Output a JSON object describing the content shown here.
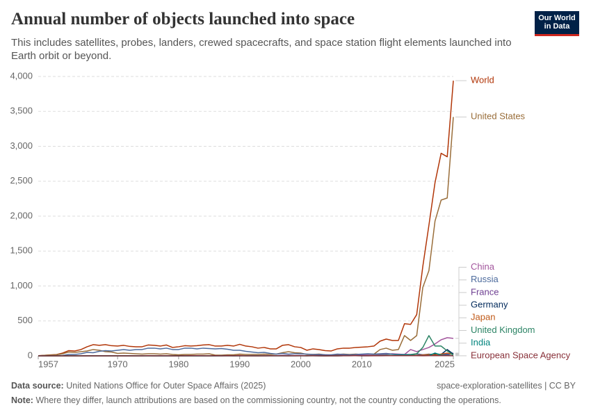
{
  "logo": {
    "line1": "Our World",
    "line2": "in Data"
  },
  "chart_data": {
    "type": "line",
    "title": "Annual number of objects launched into space",
    "subtitle": "This includes satellites, probes, landers, crewed spacecrafts, and space station flight elements launched into Earth orbit or beyond.",
    "source_label": "Data source:",
    "source": "United Nations Office for Outer Space Affairs (2025)",
    "slug": "space-exploration-satellites | CC BY",
    "note_label": "Note:",
    "note": "Where they differ, launch attributions are based on the commissioning country, not the country conducting the operations.",
    "grid": true,
    "xlim": [
      1957,
      2025
    ],
    "xticks": [
      1957,
      1970,
      1980,
      1990,
      2000,
      2010,
      2025
    ],
    "ylim": [
      0,
      4000
    ],
    "yticks": [
      0,
      500,
      {
        "value": 1000,
        "label": "1,000"
      },
      {
        "value": 1500,
        "label": "1,500"
      },
      {
        "value": 2000,
        "label": "2,000"
      },
      {
        "value": 2500,
        "label": "2,500"
      },
      {
        "value": 3000,
        "label": "3,000"
      },
      {
        "value": 3500,
        "label": "3,500"
      },
      {
        "value": 4000,
        "label": "4,000"
      }
    ],
    "x": [
      1957,
      1958,
      1959,
      1960,
      1961,
      1962,
      1963,
      1964,
      1965,
      1966,
      1967,
      1968,
      1969,
      1970,
      1971,
      1972,
      1973,
      1974,
      1975,
      1976,
      1977,
      1978,
      1979,
      1980,
      1981,
      1982,
      1983,
      1984,
      1985,
      1986,
      1987,
      1988,
      1989,
      1990,
      1991,
      1992,
      1993,
      1994,
      1995,
      1996,
      1997,
      1998,
      1999,
      2000,
      2001,
      2002,
      2003,
      2004,
      2005,
      2006,
      2007,
      2008,
      2009,
      2010,
      2011,
      2012,
      2013,
      2014,
      2015,
      2016,
      2017,
      2018,
      2019,
      2020,
      2021,
      2022,
      2023,
      2024,
      2025
    ],
    "series": [
      {
        "name": "World",
        "color": "#b13507",
        "values": [
          2,
          8,
          14,
          19,
          40,
          75,
          70,
          90,
          130,
          160,
          150,
          160,
          145,
          140,
          150,
          135,
          130,
          130,
          155,
          150,
          140,
          155,
          120,
          130,
          145,
          140,
          145,
          155,
          160,
          140,
          140,
          150,
          140,
          165,
          140,
          130,
          110,
          120,
          100,
          100,
          150,
          160,
          130,
          120,
          80,
          100,
          90,
          75,
          70,
          100,
          110,
          110,
          120,
          125,
          130,
          140,
          210,
          240,
          220,
          220,
          460,
          450,
          590,
          1280,
          1870,
          2480,
          2900,
          2850,
          3940
        ]
      },
      {
        "name": "United States",
        "color": "#996d39",
        "values": [
          0,
          7,
          11,
          16,
          30,
          55,
          50,
          60,
          70,
          90,
          80,
          60,
          55,
          35,
          40,
          35,
          30,
          25,
          30,
          30,
          25,
          30,
          20,
          15,
          20,
          20,
          25,
          25,
          30,
          10,
          10,
          15,
          15,
          25,
          20,
          20,
          20,
          25,
          20,
          25,
          45,
          60,
          45,
          40,
          20,
          20,
          25,
          15,
          10,
          20,
          25,
          20,
          25,
          20,
          20,
          25,
          90,
          110,
          80,
          90,
          290,
          220,
          290,
          980,
          1220,
          1930,
          2230,
          2260,
          3420
        ]
      },
      {
        "name": "China",
        "color": "#a2559c",
        "values": [
          0,
          0,
          0,
          0,
          0,
          0,
          0,
          0,
          0,
          0,
          0,
          0,
          0,
          1,
          1,
          0,
          0,
          0,
          3,
          2,
          0,
          1,
          0,
          0,
          3,
          1,
          0,
          3,
          1,
          2,
          2,
          4,
          0,
          5,
          1,
          4,
          2,
          5,
          2,
          3,
          6,
          6,
          4,
          5,
          1,
          5,
          7,
          10,
          5,
          7,
          10,
          12,
          7,
          18,
          21,
          22,
          18,
          23,
          30,
          25,
          20,
          90,
          60,
          90,
          120,
          170,
          230,
          260,
          250
        ]
      },
      {
        "name": "Russia",
        "color": "#4c6a9c",
        "values": [
          2,
          1,
          3,
          3,
          6,
          20,
          20,
          30,
          50,
          45,
          65,
          75,
          70,
          80,
          90,
          80,
          90,
          90,
          110,
          110,
          100,
          110,
          90,
          90,
          110,
          110,
          100,
          110,
          105,
          100,
          105,
          95,
          80,
          80,
          65,
          55,
          45,
          50,
          35,
          25,
          35,
          25,
          30,
          30,
          25,
          20,
          20,
          15,
          15,
          25,
          20,
          15,
          20,
          25,
          30,
          25,
          30,
          35,
          25,
          20,
          20,
          20,
          30,
          15,
          25,
          10,
          25,
          15,
          40
        ]
      },
      {
        "name": "France",
        "color": "#6d3e91",
        "values": [
          0,
          0,
          0,
          0,
          0,
          0,
          0,
          0,
          1,
          1,
          2,
          0,
          0,
          1,
          2,
          0,
          0,
          2,
          3,
          0,
          2,
          1,
          0,
          1,
          1,
          2,
          1,
          2,
          2,
          2,
          1,
          3,
          2,
          3,
          2,
          2,
          2,
          3,
          3,
          3,
          5,
          4,
          3,
          4,
          3,
          4,
          3,
          6,
          4,
          5,
          4,
          5,
          4,
          5,
          4,
          4,
          3,
          5,
          5,
          6,
          6,
          8,
          10,
          15,
          18,
          20,
          22,
          25,
          30
        ]
      },
      {
        "name": "Germany",
        "color": "#00295b",
        "values": [
          0,
          0,
          0,
          0,
          0,
          0,
          0,
          0,
          0,
          0,
          0,
          0,
          1,
          1,
          1,
          0,
          0,
          2,
          1,
          0,
          0,
          1,
          0,
          0,
          0,
          0,
          1,
          0,
          0,
          0,
          1,
          1,
          1,
          2,
          1,
          0,
          0,
          1,
          1,
          1,
          2,
          1,
          1,
          3,
          2,
          2,
          0,
          0,
          1,
          1,
          3,
          3,
          2,
          1,
          1,
          3,
          5,
          4,
          5,
          3,
          5,
          7,
          6,
          10,
          15,
          30,
          20,
          90,
          25
        ]
      },
      {
        "name": "Japan",
        "color": "#c05917",
        "values": [
          0,
          0,
          0,
          0,
          0,
          0,
          0,
          0,
          0,
          0,
          0,
          0,
          0,
          1,
          1,
          1,
          0,
          1,
          2,
          1,
          2,
          3,
          2,
          2,
          3,
          1,
          3,
          3,
          2,
          4,
          3,
          3,
          2,
          5,
          3,
          3,
          2,
          4,
          2,
          2,
          3,
          3,
          2,
          2,
          3,
          4,
          3,
          0,
          3,
          5,
          3,
          3,
          4,
          3,
          3,
          5,
          3,
          5,
          4,
          4,
          7,
          10,
          9,
          12,
          20,
          15,
          25,
          40,
          20
        ]
      },
      {
        "name": "United Kingdom",
        "color": "#2c8465",
        "values": [
          0,
          0,
          0,
          0,
          0,
          1,
          0,
          0,
          0,
          0,
          1,
          0,
          1,
          0,
          2,
          0,
          0,
          1,
          0,
          0,
          0,
          1,
          0,
          0,
          1,
          0,
          0,
          0,
          0,
          1,
          1,
          1,
          1,
          1,
          1,
          1,
          0,
          0,
          1,
          1,
          2,
          1,
          2,
          1,
          0,
          2,
          2,
          1,
          1,
          1,
          2,
          2,
          3,
          2,
          3,
          5,
          6,
          10,
          8,
          10,
          12,
          15,
          30,
          120,
          290,
          140,
          140,
          70,
          15
        ]
      },
      {
        "name": "India",
        "color": "#00847e",
        "values": [
          0,
          0,
          0,
          0,
          0,
          0,
          0,
          0,
          0,
          0,
          0,
          0,
          0,
          0,
          0,
          0,
          0,
          0,
          1,
          0,
          0,
          0,
          1,
          1,
          1,
          1,
          1,
          0,
          0,
          0,
          1,
          1,
          0,
          0,
          1,
          1,
          1,
          1,
          1,
          1,
          1,
          1,
          1,
          1,
          2,
          1,
          1,
          1,
          2,
          1,
          3,
          3,
          2,
          3,
          3,
          3,
          2,
          2,
          4,
          6,
          8,
          6,
          5,
          2,
          5,
          40,
          10,
          8,
          5
        ]
      },
      {
        "name": "European Space Agency",
        "color": "#883039",
        "values": [
          0,
          0,
          0,
          0,
          0,
          0,
          0,
          0,
          0,
          0,
          0,
          0,
          0,
          0,
          0,
          0,
          0,
          0,
          2,
          0,
          1,
          1,
          0,
          0,
          1,
          2,
          2,
          1,
          0,
          2,
          0,
          2,
          1,
          2,
          0,
          0,
          0,
          0,
          1,
          1,
          1,
          0,
          2,
          1,
          1,
          1,
          1,
          0,
          1,
          0,
          1,
          1,
          3,
          1,
          1,
          2,
          1,
          2,
          2,
          3,
          2,
          3,
          2,
          1,
          2,
          3,
          2,
          3,
          1
        ]
      }
    ]
  }
}
